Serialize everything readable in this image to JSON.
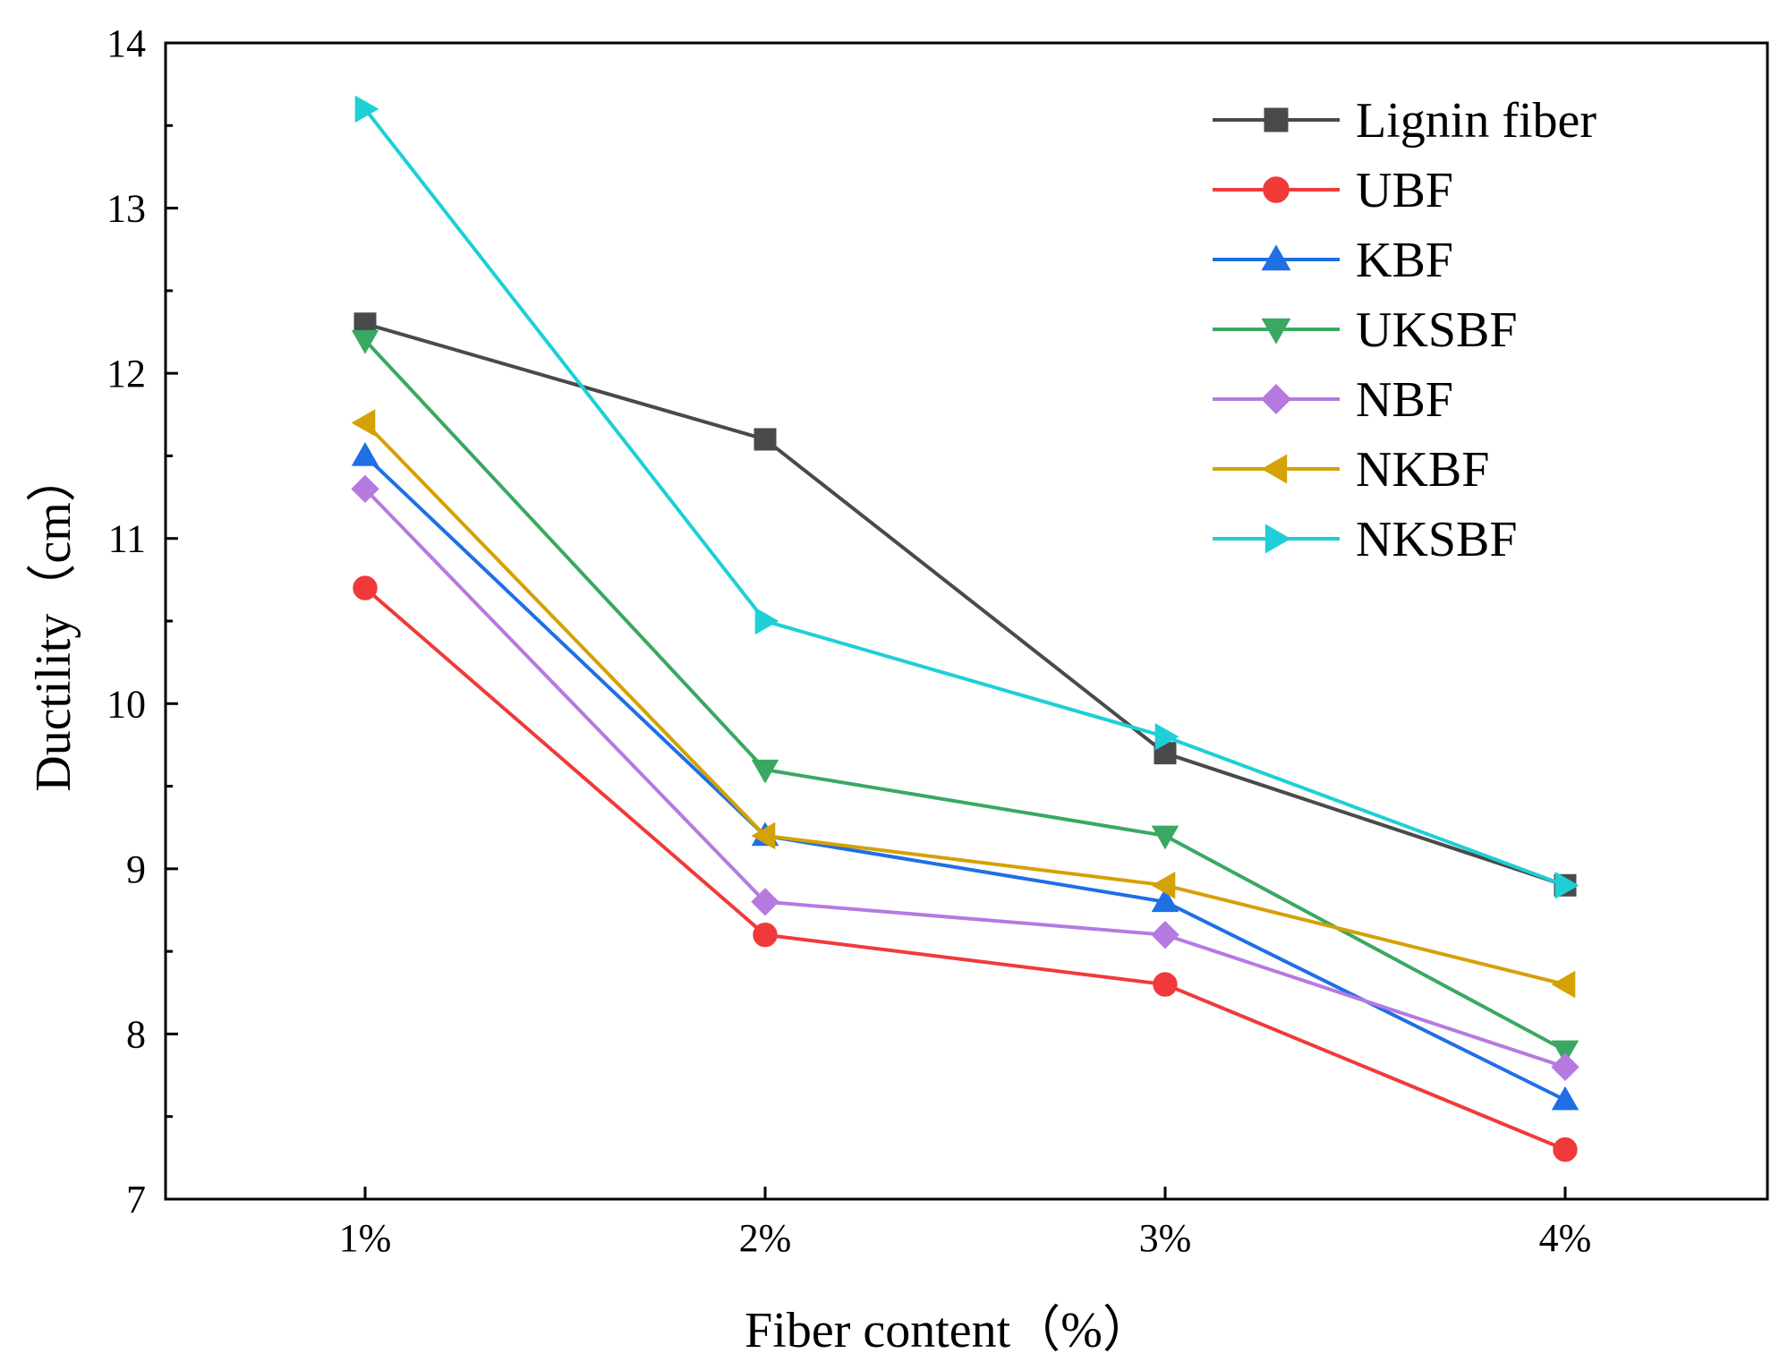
{
  "chart_data": {
    "type": "line",
    "title": "",
    "xlabel": "Fiber content（%）",
    "ylabel": "Ductility（cm）",
    "categories": [
      "1%",
      "2%",
      "3%",
      "4%"
    ],
    "ylim": [
      7,
      14
    ],
    "yticks": [
      7,
      8,
      9,
      10,
      11,
      12,
      13,
      14
    ],
    "grid": false,
    "legend_position": "top-right",
    "series": [
      {
        "name": "Lignin fiber",
        "color": "#4a4a4a",
        "marker": "square",
        "values": [
          12.3,
          11.6,
          9.7,
          8.9
        ]
      },
      {
        "name": "UBF",
        "color": "#f03a3a",
        "marker": "circle",
        "values": [
          10.7,
          8.6,
          8.3,
          7.3
        ]
      },
      {
        "name": "KBF",
        "color": "#1f6fe5",
        "marker": "triangle-up",
        "values": [
          11.5,
          9.2,
          8.8,
          7.6
        ]
      },
      {
        "name": "UKSBF",
        "color": "#3aa862",
        "marker": "triangle-down",
        "values": [
          12.2,
          9.6,
          9.2,
          7.9
        ]
      },
      {
        "name": "NBF",
        "color": "#b57ae0",
        "marker": "diamond",
        "values": [
          11.3,
          8.8,
          8.6,
          7.8
        ]
      },
      {
        "name": "NKBF",
        "color": "#d4a106",
        "marker": "triangle-left",
        "values": [
          11.7,
          9.2,
          8.9,
          8.3
        ]
      },
      {
        "name": "NKSBF",
        "color": "#1ecfd6",
        "marker": "triangle-right",
        "values": [
          13.6,
          10.5,
          9.8,
          8.9
        ]
      }
    ]
  }
}
